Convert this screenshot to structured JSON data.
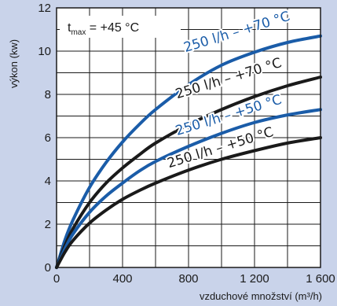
{
  "chart_data": {
    "type": "line",
    "title": "",
    "xlabel": "vzduchové množství (m³/h)",
    "ylabel": "výkon (kw)",
    "xlim": [
      0,
      1600
    ],
    "ylim": [
      0,
      12
    ],
    "x_ticks": [
      0,
      400,
      800,
      1200,
      1600
    ],
    "x_tick_labels": [
      "0",
      "400",
      "800",
      "1 200",
      "1 600"
    ],
    "y_ticks": [
      0,
      2,
      4,
      6,
      8,
      10,
      12
    ],
    "y_tick_labels": [
      "0",
      "2",
      "4",
      "6",
      "8",
      "10",
      "12"
    ],
    "grid": true,
    "annotation": {
      "t": "t",
      "sub": "max",
      "rest": " = +45 °C"
    },
    "series": [
      {
        "name": "250 l/h – +70 °C",
        "color": "#1a5ca8",
        "label_pos": [
          1100,
          10.7
        ],
        "x": [
          0,
          50,
          100,
          200,
          300,
          400,
          500,
          600,
          800,
          1000,
          1200,
          1400,
          1600
        ],
        "y": [
          0,
          1.25,
          2.2,
          3.7,
          4.85,
          5.8,
          6.6,
          7.3,
          8.45,
          9.35,
          9.95,
          10.4,
          10.7
        ]
      },
      {
        "name": "250 l/h – +70 °C",
        "color": "#1a1a1a",
        "label_pos": [
          1050,
          8.55
        ],
        "x": [
          0,
          50,
          100,
          200,
          300,
          400,
          500,
          600,
          800,
          1000,
          1200,
          1400,
          1600
        ],
        "y": [
          0,
          1.0,
          1.8,
          3.0,
          3.9,
          4.6,
          5.2,
          5.75,
          6.6,
          7.3,
          7.9,
          8.4,
          8.8
        ]
      },
      {
        "name": "250 l/h – +50 °C",
        "color": "#1a5ca8",
        "label_pos": [
          1050,
          6.85
        ],
        "x": [
          0,
          50,
          100,
          200,
          300,
          400,
          500,
          600,
          800,
          1000,
          1200,
          1400,
          1600
        ],
        "y": [
          0,
          0.85,
          1.55,
          2.55,
          3.3,
          3.9,
          4.45,
          4.9,
          5.6,
          6.2,
          6.7,
          7.05,
          7.3
        ]
      },
      {
        "name": "250 l/h – +50 °C",
        "color": "#1a1a1a",
        "label_pos": [
          1000,
          5.35
        ],
        "x": [
          0,
          50,
          100,
          200,
          300,
          400,
          500,
          600,
          800,
          1000,
          1200,
          1400,
          1600
        ],
        "y": [
          0,
          0.7,
          1.25,
          2.05,
          2.65,
          3.15,
          3.55,
          3.9,
          4.5,
          5.0,
          5.4,
          5.75,
          6.0
        ]
      }
    ]
  }
}
